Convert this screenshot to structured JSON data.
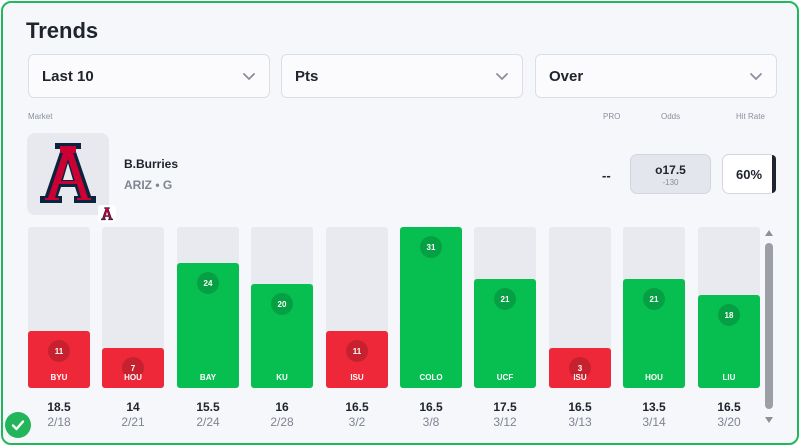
{
  "header": {
    "title": "Trends"
  },
  "filters": {
    "range": "Last 10",
    "stat": "Pts",
    "direction": "Over"
  },
  "columns": {
    "market": "Market",
    "pro": "PRO",
    "odds": "Odds",
    "hit_rate": "Hit Rate"
  },
  "player": {
    "name": "B.Burries",
    "team_position": "ARIZ • G",
    "pro": "--",
    "odds_line": "o17.5",
    "odds_price": "-130",
    "hit_rate": "60%"
  },
  "colors": {
    "hit": "#07bf50",
    "miss": "#ee2838",
    "accent": "#20b85a",
    "team_navy": "#0c2340",
    "team_red": "#cc0033"
  },
  "chart_data": {
    "type": "bar",
    "categories": [
      "BYU",
      "HOU",
      "BAY",
      "KU",
      "ISU",
      "COLO",
      "UCF",
      "ISU",
      "HOU",
      "LIU"
    ],
    "values": [
      11,
      7,
      24,
      20,
      11,
      31,
      21,
      3,
      21,
      18
    ],
    "lines": [
      "18.5",
      "14",
      "15.5",
      "16",
      "16.5",
      "16.5",
      "17.5",
      "16.5",
      "13.5",
      "16.5"
    ],
    "dates": [
      "2/18",
      "2/21",
      "2/24",
      "2/28",
      "3/2",
      "3/8",
      "3/12",
      "3/13",
      "3/14",
      "3/20"
    ],
    "results": [
      "miss",
      "miss",
      "hit",
      "hit",
      "miss",
      "hit",
      "hit",
      "miss",
      "hit",
      "hit"
    ],
    "ylim": [
      0,
      31
    ],
    "title": "",
    "xlabel": "",
    "ylabel": ""
  }
}
